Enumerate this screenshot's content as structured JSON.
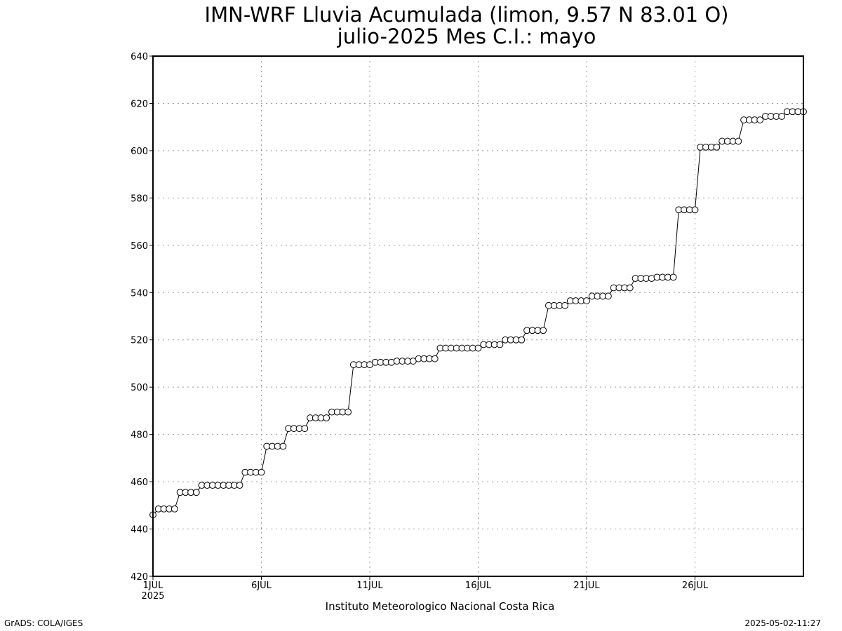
{
  "chart_data": {
    "type": "line",
    "title": "IMN-WRF  Lluvia Acumulada (limon, 9.57  N 83.01  O)",
    "subtitle": "julio-2025 Mes C.I.: mayo",
    "xlabel": "",
    "ylabel": "",
    "credit": "Instituto Meteorologico Nacional Costa Rica",
    "ylim": [
      420,
      640
    ],
    "yticks": [
      420,
      440,
      460,
      480,
      500,
      520,
      540,
      560,
      580,
      600,
      620,
      640
    ],
    "xlim": [
      1,
      31
    ],
    "xticks": [
      {
        "day": 1,
        "label": "1JUL",
        "sublabel": "2025"
      },
      {
        "day": 6,
        "label": "6JUL",
        "sublabel": ""
      },
      {
        "day": 11,
        "label": "11JUL",
        "sublabel": ""
      },
      {
        "day": 16,
        "label": "16JUL",
        "sublabel": ""
      },
      {
        "day": 21,
        "label": "21JUL",
        "sublabel": ""
      },
      {
        "day": 26,
        "label": "26JUL",
        "sublabel": ""
      }
    ],
    "grid": true,
    "x_step_days": 0.25,
    "series": [
      {
        "values": [
          446,
          448.5,
          448.5,
          448.5,
          448.5,
          455.5,
          455.5,
          455.5,
          455.5,
          458.5,
          458.5,
          458.5,
          458.5,
          458.5,
          458.5,
          458.5,
          458.5,
          464,
          464,
          464,
          464,
          475,
          475,
          475,
          475,
          482.5,
          482.5,
          482.5,
          482.5,
          487,
          487,
          487,
          487,
          489.5,
          489.5,
          489.5,
          489.5,
          509.5,
          509.5,
          509.5,
          509.5,
          510.5,
          510.5,
          510.5,
          510.5,
          511,
          511,
          511,
          511,
          512,
          512,
          512,
          512,
          516.5,
          516.5,
          516.5,
          516.5,
          516.5,
          516.5,
          516.5,
          516.5,
          518,
          518,
          518,
          518,
          520,
          520,
          520,
          520,
          524,
          524,
          524,
          524,
          534.5,
          534.5,
          534.5,
          534.5,
          536.5,
          536.5,
          536.5,
          536.5,
          538.5,
          538.5,
          538.5,
          538.5,
          542,
          542,
          542,
          542,
          546,
          546,
          546,
          546,
          546.5,
          546.5,
          546.5,
          546.5,
          575,
          575,
          575,
          575,
          601.5,
          601.5,
          601.5,
          601.5,
          604,
          604,
          604,
          604,
          613,
          613,
          613,
          613,
          614.5,
          614.5,
          614.5,
          614.5,
          616.5,
          616.5,
          616.5,
          616.5
        ]
      }
    ]
  },
  "footer": {
    "left": "GrADS: COLA/IGES",
    "right": "2025-05-02-11:27"
  }
}
